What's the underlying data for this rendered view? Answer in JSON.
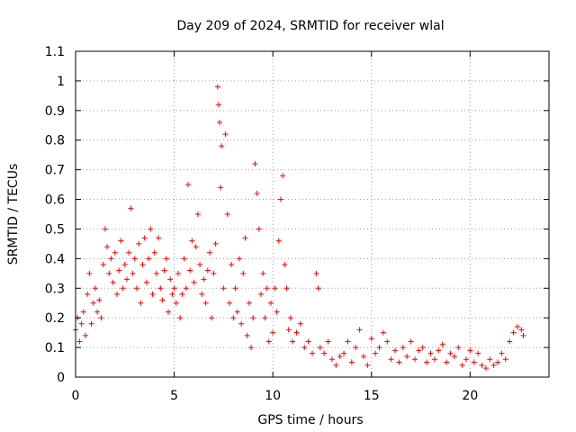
{
  "chart_data": {
    "type": "scatter",
    "title": "Day 209 of 2024, SRMTID for receiver wlal",
    "xlabel": "GPS time / hours",
    "ylabel": "SRMTID / TECUs",
    "xlim": [
      0,
      24
    ],
    "ylim": [
      0,
      1.1
    ],
    "xticks": [
      0,
      5,
      10,
      15,
      20
    ],
    "xtick_labels": [
      "0",
      "5",
      "10",
      "15",
      "20"
    ],
    "yticks": [
      0,
      0.1,
      0.2,
      0.3,
      0.4,
      0.5,
      0.6,
      0.7,
      0.8,
      0.9,
      1,
      1.1
    ],
    "ytick_labels": [
      "0",
      "0.1",
      "0.2",
      "0.3",
      "0.4",
      "0.5",
      "0.6",
      "0.7",
      "0.8",
      "0.9",
      "1",
      "1.1"
    ],
    "grid": true,
    "marker": "+",
    "color": "#ff0000",
    "series": [
      {
        "name": "SRMTID",
        "points": [
          [
            0.0,
            0.16
          ],
          [
            0.1,
            0.2
          ],
          [
            0.2,
            0.12
          ],
          [
            0.3,
            0.18
          ],
          [
            0.4,
            0.22
          ],
          [
            0.5,
            0.14
          ],
          [
            0.6,
            0.28
          ],
          [
            0.7,
            0.35
          ],
          [
            0.8,
            0.18
          ],
          [
            0.9,
            0.25
          ],
          [
            1.0,
            0.3
          ],
          [
            1.1,
            0.22
          ],
          [
            1.2,
            0.26
          ],
          [
            1.3,
            0.2
          ],
          [
            1.4,
            0.38
          ],
          [
            1.5,
            0.5
          ],
          [
            1.6,
            0.44
          ],
          [
            1.7,
            0.35
          ],
          [
            1.8,
            0.4
          ],
          [
            1.9,
            0.32
          ],
          [
            2.0,
            0.42
          ],
          [
            2.1,
            0.28
          ],
          [
            2.2,
            0.36
          ],
          [
            2.3,
            0.46
          ],
          [
            2.4,
            0.3
          ],
          [
            2.5,
            0.38
          ],
          [
            2.6,
            0.33
          ],
          [
            2.7,
            0.42
          ],
          [
            2.8,
            0.57
          ],
          [
            2.9,
            0.35
          ],
          [
            3.0,
            0.4
          ],
          [
            3.1,
            0.3
          ],
          [
            3.2,
            0.45
          ],
          [
            3.3,
            0.25
          ],
          [
            3.4,
            0.38
          ],
          [
            3.5,
            0.47
          ],
          [
            3.6,
            0.32
          ],
          [
            3.7,
            0.4
          ],
          [
            3.8,
            0.5
          ],
          [
            3.9,
            0.28
          ],
          [
            4.0,
            0.42
          ],
          [
            4.1,
            0.35
          ],
          [
            4.2,
            0.47
          ],
          [
            4.3,
            0.3
          ],
          [
            4.4,
            0.26
          ],
          [
            4.5,
            0.36
          ],
          [
            4.6,
            0.4
          ],
          [
            4.7,
            0.22
          ],
          [
            4.8,
            0.33
          ],
          [
            4.9,
            0.28
          ],
          [
            5.0,
            0.3
          ],
          [
            5.1,
            0.25
          ],
          [
            5.2,
            0.35
          ],
          [
            5.3,
            0.2
          ],
          [
            5.4,
            0.28
          ],
          [
            5.5,
            0.4
          ],
          [
            5.6,
            0.3
          ],
          [
            5.7,
            0.65
          ],
          [
            5.8,
            0.36
          ],
          [
            5.9,
            0.46
          ],
          [
            6.0,
            0.32
          ],
          [
            6.1,
            0.44
          ],
          [
            6.2,
            0.55
          ],
          [
            6.3,
            0.38
          ],
          [
            6.4,
            0.28
          ],
          [
            6.5,
            0.33
          ],
          [
            6.6,
            0.25
          ],
          [
            6.7,
            0.36
          ],
          [
            6.8,
            0.42
          ],
          [
            6.9,
            0.2
          ],
          [
            7.0,
            0.35
          ],
          [
            7.1,
            0.45
          ],
          [
            7.2,
            0.98
          ],
          [
            7.25,
            0.92
          ],
          [
            7.3,
            0.86
          ],
          [
            7.35,
            0.64
          ],
          [
            7.4,
            0.78
          ],
          [
            7.5,
            0.3
          ],
          [
            7.6,
            0.82
          ],
          [
            7.7,
            0.55
          ],
          [
            7.8,
            0.25
          ],
          [
            7.9,
            0.38
          ],
          [
            8.0,
            0.2
          ],
          [
            8.1,
            0.3
          ],
          [
            8.2,
            0.22
          ],
          [
            8.3,
            0.4
          ],
          [
            8.4,
            0.18
          ],
          [
            8.5,
            0.35
          ],
          [
            8.6,
            0.47
          ],
          [
            8.7,
            0.14
          ],
          [
            8.8,
            0.25
          ],
          [
            8.9,
            0.1
          ],
          [
            9.0,
            0.2
          ],
          [
            9.1,
            0.72
          ],
          [
            9.2,
            0.62
          ],
          [
            9.3,
            0.5
          ],
          [
            9.4,
            0.28
          ],
          [
            9.5,
            0.35
          ],
          [
            9.6,
            0.2
          ],
          [
            9.7,
            0.3
          ],
          [
            9.8,
            0.12
          ],
          [
            9.9,
            0.25
          ],
          [
            10.0,
            0.15
          ],
          [
            10.1,
            0.3
          ],
          [
            10.2,
            0.22
          ],
          [
            10.3,
            0.46
          ],
          [
            10.4,
            0.6
          ],
          [
            10.5,
            0.68
          ],
          [
            10.6,
            0.38
          ],
          [
            10.7,
            0.3
          ],
          [
            10.8,
            0.16
          ],
          [
            10.9,
            0.2
          ],
          [
            11.0,
            0.12
          ],
          [
            11.2,
            0.15
          ],
          [
            11.4,
            0.18
          ],
          [
            11.6,
            0.1
          ],
          [
            11.8,
            0.12
          ],
          [
            12.0,
            0.08
          ],
          [
            12.2,
            0.35
          ],
          [
            12.3,
            0.3
          ],
          [
            12.4,
            0.1
          ],
          [
            12.6,
            0.08
          ],
          [
            12.8,
            0.12
          ],
          [
            13.0,
            0.06
          ],
          [
            13.2,
            0.04
          ],
          [
            13.4,
            0.07
          ],
          [
            13.6,
            0.08
          ],
          [
            13.8,
            0.12
          ],
          [
            14.0,
            0.05
          ],
          [
            14.2,
            0.1
          ],
          [
            14.4,
            0.16
          ],
          [
            14.6,
            0.07
          ],
          [
            14.8,
            0.04
          ],
          [
            15.0,
            0.13
          ],
          [
            15.2,
            0.08
          ],
          [
            15.4,
            0.1
          ],
          [
            15.6,
            0.15
          ],
          [
            15.8,
            0.12
          ],
          [
            16.0,
            0.06
          ],
          [
            16.2,
            0.09
          ],
          [
            16.4,
            0.05
          ],
          [
            16.6,
            0.1
          ],
          [
            16.8,
            0.07
          ],
          [
            17.0,
            0.12
          ],
          [
            17.2,
            0.06
          ],
          [
            17.4,
            0.09
          ],
          [
            17.6,
            0.1
          ],
          [
            17.8,
            0.05
          ],
          [
            18.0,
            0.08
          ],
          [
            18.2,
            0.06
          ],
          [
            18.4,
            0.09
          ],
          [
            18.6,
            0.11
          ],
          [
            18.8,
            0.05
          ],
          [
            19.0,
            0.08
          ],
          [
            19.2,
            0.07
          ],
          [
            19.4,
            0.1
          ],
          [
            19.6,
            0.04
          ],
          [
            19.8,
            0.06
          ],
          [
            20.0,
            0.09
          ],
          [
            20.2,
            0.05
          ],
          [
            20.4,
            0.08
          ],
          [
            20.6,
            0.04
          ],
          [
            20.8,
            0.03
          ],
          [
            21.0,
            0.06
          ],
          [
            21.2,
            0.04
          ],
          [
            21.4,
            0.05
          ],
          [
            21.6,
            0.08
          ],
          [
            21.8,
            0.06
          ],
          [
            22.0,
            0.12
          ],
          [
            22.2,
            0.15
          ],
          [
            22.4,
            0.17
          ],
          [
            22.6,
            0.16
          ],
          [
            22.7,
            0.14
          ]
        ]
      }
    ]
  }
}
